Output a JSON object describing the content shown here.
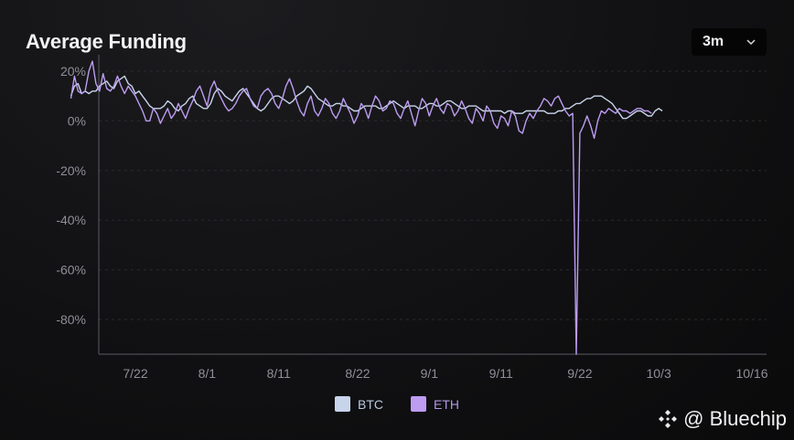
{
  "header": {
    "title": "Average Funding",
    "range": {
      "selected": "3m"
    }
  },
  "icons": {
    "dropdown": "chevron-down-icon",
    "brand": "binance-logo-icon"
  },
  "watermark": {
    "text": "@ Bluechip"
  },
  "colors": {
    "btc": "#c8d4ea",
    "eth": "#bd9cf2",
    "axis": "#5a5a62",
    "grid": "#2a2a30",
    "tick": "#8f8f98"
  },
  "chart_data": {
    "type": "line",
    "title": "Average Funding",
    "xlabel": "",
    "ylabel": "",
    "ylim": [
      -94,
      24
    ],
    "yticks": [
      20,
      0,
      -20,
      -40,
      -60,
      -80
    ],
    "ytick_labels": [
      "20%",
      "0%",
      "-20%",
      "-40%",
      "-60%",
      "-80%"
    ],
    "xticks": [
      {
        "label": "7/22",
        "day": 9
      },
      {
        "label": "8/1",
        "day": 19
      },
      {
        "label": "8/11",
        "day": 29
      },
      {
        "label": "8/22",
        "day": 40
      },
      {
        "label": "9/1",
        "day": 50
      },
      {
        "label": "9/11",
        "day": 60
      },
      {
        "label": "9/22",
        "day": 71
      },
      {
        "label": "10/3",
        "day": 82
      },
      {
        "label": "10/16",
        "day": 95
      }
    ],
    "grid": true,
    "legend": "bottom-center",
    "series": [
      {
        "name": "BTC",
        "color": "#c8d4ea",
        "day_start": 0,
        "step_days": 0.5,
        "values": [
          10,
          14,
          15,
          11,
          12,
          11,
          12,
          12,
          14,
          15,
          16,
          14,
          13,
          16,
          17,
          18,
          15,
          14,
          11,
          12,
          10,
          8,
          6,
          5,
          5,
          5,
          6,
          8,
          7,
          5,
          4,
          6,
          7,
          9,
          10,
          7,
          6,
          5,
          5,
          7,
          11,
          13,
          12,
          10,
          9,
          8,
          10,
          12,
          13,
          11,
          9,
          7,
          5,
          4,
          5,
          7,
          9,
          10,
          10,
          9,
          8,
          7,
          8,
          10,
          11,
          12,
          14,
          13,
          11,
          9,
          8,
          7,
          6,
          6,
          7,
          7,
          6,
          6,
          5,
          4,
          4,
          5,
          6,
          6,
          6,
          6,
          5,
          5,
          6,
          7,
          8,
          7,
          6,
          5,
          6,
          6,
          6,
          5,
          5,
          6,
          7,
          7,
          6,
          6,
          7,
          8,
          8,
          7,
          6,
          5,
          5,
          6,
          6,
          6,
          5,
          4,
          4,
          4,
          4,
          4,
          4,
          3,
          4,
          4,
          3,
          3,
          3,
          4,
          4,
          4,
          4,
          4,
          4,
          3,
          3,
          3,
          4,
          4,
          5,
          5,
          6,
          7,
          7,
          8,
          9,
          9,
          10,
          10,
          10,
          9,
          8,
          7,
          5,
          3,
          1,
          1,
          2,
          3,
          4,
          4,
          3,
          2,
          2,
          4,
          5,
          4
        ],
        "comment_end_note": ""
      },
      {
        "name": "ETH",
        "color": "#bd9cf2",
        "day_start": 0,
        "step_days": 0.5,
        "values": [
          9,
          18,
          12,
          11,
          12,
          20,
          24,
          15,
          12,
          19,
          13,
          12,
          14,
          18,
          14,
          11,
          14,
          12,
          10,
          7,
          4,
          0,
          0,
          5,
          3,
          -1,
          2,
          5,
          1,
          3,
          7,
          4,
          1,
          5,
          8,
          12,
          14,
          10,
          6,
          13,
          16,
          12,
          9,
          6,
          4,
          5,
          7,
          10,
          12,
          13,
          9,
          6,
          5,
          10,
          12,
          13,
          11,
          7,
          5,
          9,
          14,
          17,
          13,
          8,
          4,
          2,
          7,
          10,
          4,
          2,
          5,
          9,
          7,
          3,
          1,
          4,
          9,
          6,
          3,
          -1,
          2,
          7,
          5,
          1,
          6,
          10,
          8,
          4,
          5,
          8,
          7,
          3,
          1,
          5,
          8,
          3,
          -2,
          4,
          9,
          7,
          2,
          6,
          9,
          5,
          3,
          7,
          6,
          2,
          4,
          8,
          5,
          1,
          -1,
          5,
          3,
          0,
          6,
          4,
          -1,
          -3,
          2,
          1,
          -2,
          4,
          2,
          -4,
          -5,
          0,
          3,
          1,
          4,
          6,
          9,
          8,
          6,
          9,
          10,
          7,
          4,
          2,
          3,
          -94,
          -5,
          -2,
          2,
          -2,
          -7,
          0,
          4,
          3,
          5,
          4,
          3,
          5,
          4,
          4,
          3,
          4,
          5,
          5,
          4,
          4,
          3
        ],
        "comment_end_note": ""
      }
    ]
  }
}
